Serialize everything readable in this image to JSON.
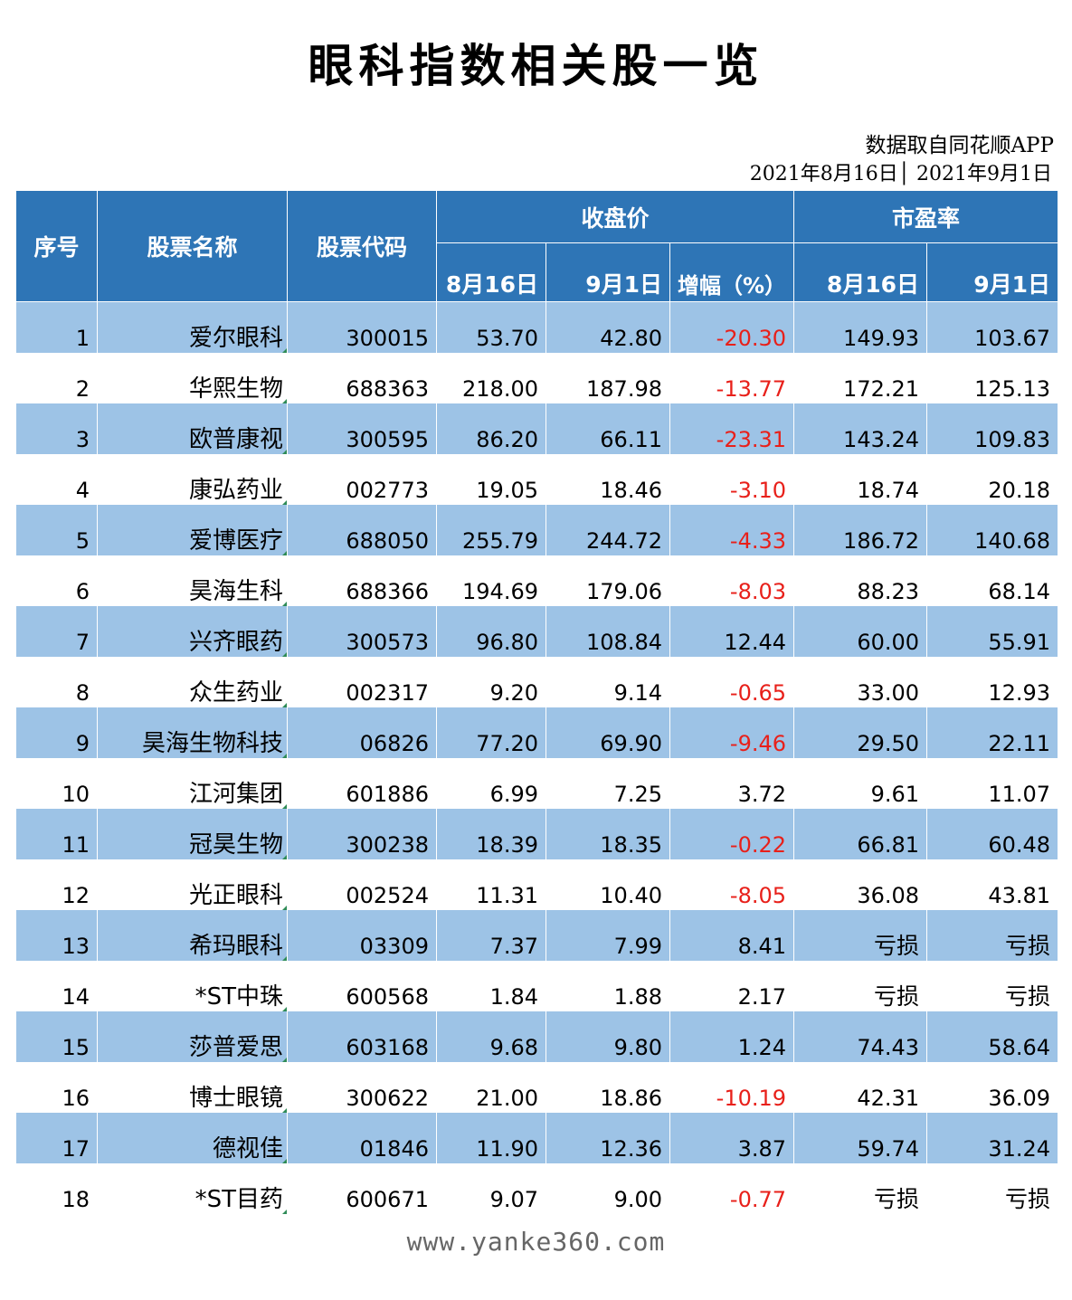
{
  "title": "眼科指数相关股一览",
  "source": "数据取自同花顺APP",
  "date_range": "2021年8月16日│ 2021年9月1日",
  "watermark": "www.yanke360.com",
  "colors": {
    "header": "#2e75b6",
    "band": "#9dc3e6",
    "negative": "#e8201a"
  },
  "chart_data": {
    "type": "table",
    "headers": {
      "seq": "序号",
      "name": "股票名称",
      "code": "股票代码",
      "close_group": "收盘价",
      "pe_group": "市盈率",
      "close_aug16": "8月16日",
      "close_sep1": "9月1日",
      "change_pct": "增幅（%）",
      "pe_aug16": "8月16日",
      "pe_sep1": "9月1日"
    },
    "rows": [
      {
        "seq": "1",
        "name": "爱尔眼科",
        "code": "300015",
        "close_aug16": "53.70",
        "close_sep1": "42.80",
        "change_pct": "-20.30",
        "pe_aug16": "149.93",
        "pe_sep1": "103.67"
      },
      {
        "seq": "2",
        "name": "华熙生物",
        "code": "688363",
        "close_aug16": "218.00",
        "close_sep1": "187.98",
        "change_pct": "-13.77",
        "pe_aug16": "172.21",
        "pe_sep1": "125.13"
      },
      {
        "seq": "3",
        "name": "欧普康视",
        "code": "300595",
        "close_aug16": "86.20",
        "close_sep1": "66.11",
        "change_pct": "-23.31",
        "pe_aug16": "143.24",
        "pe_sep1": "109.83"
      },
      {
        "seq": "4",
        "name": "康弘药业",
        "code": "002773",
        "close_aug16": "19.05",
        "close_sep1": "18.46",
        "change_pct": "-3.10",
        "pe_aug16": "18.74",
        "pe_sep1": "20.18"
      },
      {
        "seq": "5",
        "name": "爱博医疗",
        "code": "688050",
        "close_aug16": "255.79",
        "close_sep1": "244.72",
        "change_pct": "-4.33",
        "pe_aug16": "186.72",
        "pe_sep1": "140.68"
      },
      {
        "seq": "6",
        "name": "昊海生科",
        "code": "688366",
        "close_aug16": "194.69",
        "close_sep1": "179.06",
        "change_pct": "-8.03",
        "pe_aug16": "88.23",
        "pe_sep1": "68.14"
      },
      {
        "seq": "7",
        "name": "兴齐眼药",
        "code": "300573",
        "close_aug16": "96.80",
        "close_sep1": "108.84",
        "change_pct": "12.44",
        "pe_aug16": "60.00",
        "pe_sep1": "55.91"
      },
      {
        "seq": "8",
        "name": "众生药业",
        "code": "002317",
        "close_aug16": "9.20",
        "close_sep1": "9.14",
        "change_pct": "-0.65",
        "pe_aug16": "33.00",
        "pe_sep1": "12.93"
      },
      {
        "seq": "9",
        "name": "昊海生物科技",
        "code": "06826",
        "close_aug16": "77.20",
        "close_sep1": "69.90",
        "change_pct": "-9.46",
        "pe_aug16": "29.50",
        "pe_sep1": "22.11"
      },
      {
        "seq": "10",
        "name": "江河集团",
        "code": "601886",
        "close_aug16": "6.99",
        "close_sep1": "7.25",
        "change_pct": "3.72",
        "pe_aug16": "9.61",
        "pe_sep1": "11.07"
      },
      {
        "seq": "11",
        "name": "冠昊生物",
        "code": "300238",
        "close_aug16": "18.39",
        "close_sep1": "18.35",
        "change_pct": "-0.22",
        "pe_aug16": "66.81",
        "pe_sep1": "60.48"
      },
      {
        "seq": "12",
        "name": "光正眼科",
        "code": "002524",
        "close_aug16": "11.31",
        "close_sep1": "10.40",
        "change_pct": "-8.05",
        "pe_aug16": "36.08",
        "pe_sep1": "43.81"
      },
      {
        "seq": "13",
        "name": "希玛眼科",
        "code": "03309",
        "close_aug16": "7.37",
        "close_sep1": "7.99",
        "change_pct": "8.41",
        "pe_aug16": "亏损",
        "pe_sep1": "亏损"
      },
      {
        "seq": "14",
        "name": "*ST中珠",
        "code": "600568",
        "close_aug16": "1.84",
        "close_sep1": "1.88",
        "change_pct": "2.17",
        "pe_aug16": "亏损",
        "pe_sep1": "亏损"
      },
      {
        "seq": "15",
        "name": "莎普爱思",
        "code": "603168",
        "close_aug16": "9.68",
        "close_sep1": "9.80",
        "change_pct": "1.24",
        "pe_aug16": "74.43",
        "pe_sep1": "58.64"
      },
      {
        "seq": "16",
        "name": "博士眼镜",
        "code": "300622",
        "close_aug16": "21.00",
        "close_sep1": "18.86",
        "change_pct": "-10.19",
        "pe_aug16": "42.31",
        "pe_sep1": "36.09"
      },
      {
        "seq": "17",
        "name": "德视佳",
        "code": "01846",
        "close_aug16": "11.90",
        "close_sep1": "12.36",
        "change_pct": "3.87",
        "pe_aug16": "59.74",
        "pe_sep1": "31.24"
      },
      {
        "seq": "18",
        "name": "*ST目药",
        "code": "600671",
        "close_aug16": "9.07",
        "close_sep1": "9.00",
        "change_pct": "-0.77",
        "pe_aug16": "亏损",
        "pe_sep1": "亏损"
      }
    ]
  }
}
